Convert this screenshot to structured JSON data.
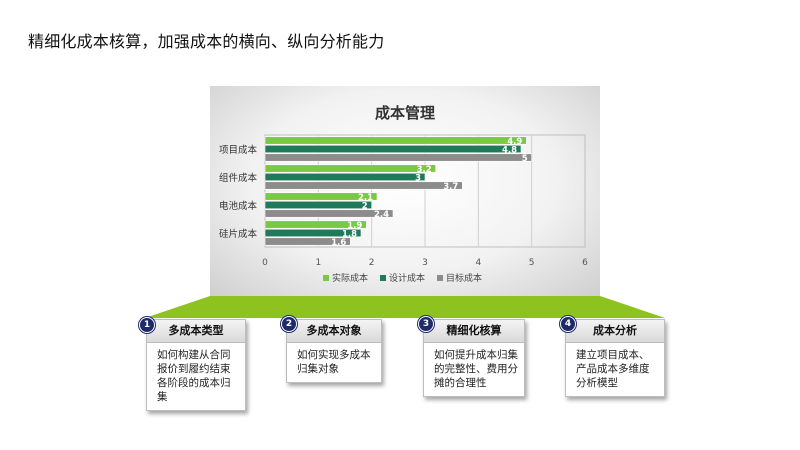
{
  "slide": {
    "title": "精细化成本核算，加强成本的横向、纵向分析能力"
  },
  "colors": {
    "actual": "#7ac943",
    "design": "#1f7a5a",
    "target": "#8c8c8c",
    "accent_green": "#8dc21f",
    "badge": "#1f2a6b"
  },
  "chart_data": {
    "type": "bar",
    "orientation": "horizontal",
    "title": "成本管理",
    "categories": [
      "项目成本",
      "组件成本",
      "电池成本",
      "硅片成本"
    ],
    "series": [
      {
        "name": "实际成本",
        "values": [
          4.9,
          3.2,
          2.1,
          1.9
        ]
      },
      {
        "name": "设计成本",
        "values": [
          4.8,
          3,
          2,
          1.8
        ]
      },
      {
        "name": "目标成本",
        "values": [
          5,
          3.7,
          2.4,
          1.6
        ]
      }
    ],
    "xlim": [
      0,
      6
    ],
    "xticks": [
      "0",
      "1",
      "2",
      "3",
      "4",
      "5",
      "6"
    ],
    "grid": true,
    "legend": "bottom"
  },
  "cards": [
    {
      "num": "1",
      "title": "多成本类型",
      "body": "如何构建从合同报价到履约结束各阶段的成本归集"
    },
    {
      "num": "2",
      "title": "多成本对象",
      "body": "如何实现多成本归集对象"
    },
    {
      "num": "3",
      "title": "精细化核算",
      "body": "如何提升成本归集的完整性、费用分摊的合理性"
    },
    {
      "num": "4",
      "title": "成本分析",
      "body": "建立项目成本、产品成本多维度分析模型"
    }
  ]
}
